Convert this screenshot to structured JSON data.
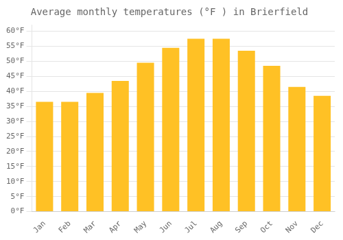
{
  "chart_data": {
    "type": "bar",
    "title": "Average monthly temperatures (°F ) in Brierfield",
    "categories": [
      "Jan",
      "Feb",
      "Mar",
      "Apr",
      "May",
      "Jun",
      "Jul",
      "Aug",
      "Sep",
      "Oct",
      "Nov",
      "Dec"
    ],
    "values": [
      36.5,
      36.5,
      39.5,
      43.5,
      49.5,
      54.5,
      57.5,
      57.5,
      53.5,
      48.5,
      41.5,
      38.5
    ],
    "color": "#FFC125",
    "ylim": [
      0,
      62
    ],
    "yticks": [
      {
        "value": 0,
        "label": "0°F"
      },
      {
        "value": 5,
        "label": "5°F"
      },
      {
        "value": 10,
        "label": "10°F"
      },
      {
        "value": 15,
        "label": "15°F"
      },
      {
        "value": 20,
        "label": "20°F"
      },
      {
        "value": 25,
        "label": "25°F"
      },
      {
        "value": 30,
        "label": "30°F"
      },
      {
        "value": 35,
        "label": "35°F"
      },
      {
        "value": 40,
        "label": "40°F"
      },
      {
        "value": 45,
        "label": "45°F"
      },
      {
        "value": 50,
        "label": "50°F"
      },
      {
        "value": 55,
        "label": "55°F"
      },
      {
        "value": 60,
        "label": "60°F"
      }
    ],
    "grid": true
  }
}
